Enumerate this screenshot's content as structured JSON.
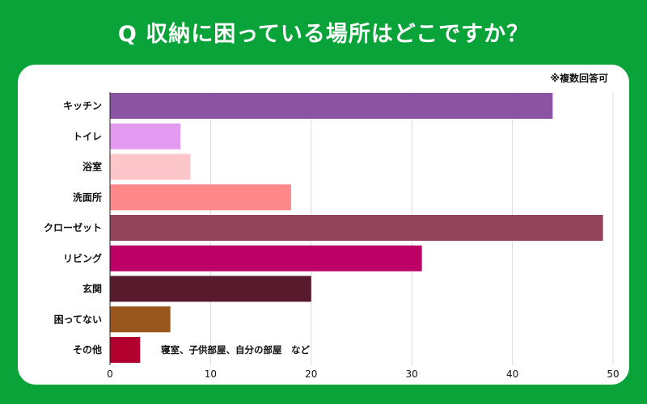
{
  "title": "Q 収納に困っている場所はどこですか？",
  "note": "※複数回答可",
  "chart_data": {
    "type": "bar",
    "orientation": "horizontal",
    "categories": [
      "キッチン",
      "トイレ",
      "浴室",
      "洗面所",
      "クローゼット",
      "リビング",
      "玄関",
      "困ってない",
      "その他"
    ],
    "values": [
      44,
      7,
      8,
      18,
      49,
      31,
      20,
      6,
      3
    ],
    "colors": [
      "#8a54a2",
      "#e49af0",
      "#fcc6cb",
      "#fe888a",
      "#93445a",
      "#bc0065",
      "#581a2d",
      "#9a571d",
      "#b1002d"
    ],
    "xlim": [
      0,
      50
    ],
    "xticks": [
      0,
      10,
      20,
      30,
      40,
      50
    ],
    "grid": true,
    "annotations": [
      {
        "category": "その他",
        "text": "寝室、子供部屋、自分の部屋　など"
      }
    ]
  }
}
